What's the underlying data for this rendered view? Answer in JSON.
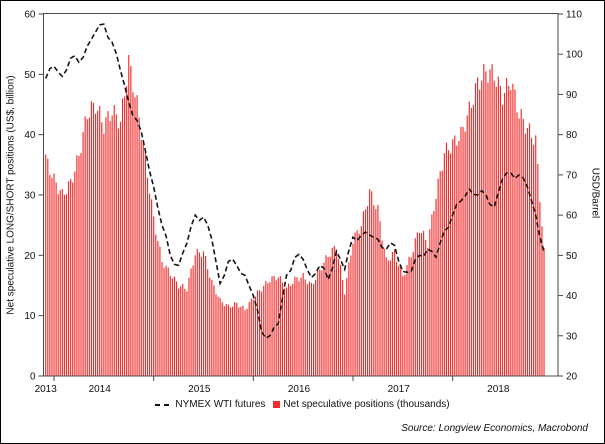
{
  "figure": {
    "source_note": "Source: Longview Economics, Macrobond"
  },
  "chart_data": {
    "type": "bar",
    "subtype": "combo_bar_line_dual_axis",
    "title": "",
    "xlabel": "",
    "left_axis": {
      "label": "Net speculative LONG/SHORT positions (US$, billion)",
      "min": 0,
      "max": 60,
      "ticks": [
        0,
        10,
        20,
        30,
        40,
        50,
        60
      ]
    },
    "right_axis": {
      "label": "USD/Barrel",
      "min": 20,
      "max": 110,
      "ticks": [
        20,
        30,
        40,
        50,
        60,
        70,
        80,
        90,
        100,
        110
      ]
    },
    "x_axis": {
      "year_labels": [
        "2013",
        "2014",
        "2015",
        "2016",
        "2017",
        "2018"
      ],
      "grid": false
    },
    "legend_position": "bottom",
    "x": [
      "2013-12",
      "2014-01",
      "2014-02",
      "2014-03",
      "2014-04",
      "2014-05",
      "2014-06",
      "2014-07",
      "2014-08",
      "2014-09",
      "2014-10",
      "2014-11",
      "2014-12",
      "2015-01",
      "2015-02",
      "2015-03",
      "2015-04",
      "2015-05",
      "2015-06",
      "2015-07",
      "2015-08",
      "2015-09",
      "2015-10",
      "2015-11",
      "2015-12",
      "2016-01",
      "2016-02",
      "2016-03",
      "2016-04",
      "2016-05",
      "2016-06",
      "2016-07",
      "2016-08",
      "2016-09",
      "2016-10",
      "2016-11",
      "2016-12",
      "2017-01",
      "2017-02",
      "2017-03",
      "2017-04",
      "2017-05",
      "2017-06",
      "2017-07",
      "2017-08",
      "2017-09",
      "2017-10",
      "2017-11",
      "2017-12",
      "2018-01",
      "2018-02",
      "2018-03",
      "2018-04",
      "2018-05",
      "2018-06",
      "2018-07",
      "2018-08",
      "2018-09",
      "2018-10",
      "2018-11",
      "2018-12"
    ],
    "series": [
      {
        "name": "NYMEX WTI futures",
        "type": "line",
        "style": "dashed",
        "axis": "right",
        "color": "#141414",
        "values": [
          94,
          97,
          94.5,
          99,
          98,
          102,
          105.5,
          107.5,
          103,
          96,
          88,
          83.5,
          76,
          67,
          57.5,
          50,
          47.5,
          53,
          60,
          59.5,
          54,
          43,
          48.5,
          47.5,
          45,
          40,
          31,
          30,
          33,
          45,
          49.5,
          49,
          44.5,
          47.5,
          44,
          51,
          46.5,
          54.5,
          55,
          55,
          54,
          51.5,
          52.5,
          46,
          46,
          50,
          51.5,
          49.5,
          56,
          60,
          63.5,
          66.5,
          65,
          65,
          62,
          69,
          70.5,
          70,
          67,
          60,
          51
        ]
      },
      {
        "name": "Net speculative positions (thousands)",
        "type": "bar",
        "axis": "left",
        "color": "#f22b2b",
        "values": [
          36,
          32.5,
          30,
          32,
          36.5,
          43.5,
          45,
          41.5,
          44,
          42,
          52,
          45,
          36,
          26,
          19,
          17,
          15,
          14.5,
          20.3,
          20.5,
          15.5,
          12.5,
          11.5,
          12,
          11,
          13,
          14.5,
          16,
          16.5,
          14.5,
          16,
          16.5,
          15,
          17.5,
          20,
          21.5,
          14,
          22.5,
          25,
          30.5,
          27.5,
          19,
          20.5,
          16.5,
          20,
          24.5,
          22,
          30,
          37,
          38.5,
          40,
          44,
          48.5,
          50.5,
          50,
          46.5,
          49,
          43.5,
          41,
          39,
          20.5
        ]
      }
    ]
  }
}
